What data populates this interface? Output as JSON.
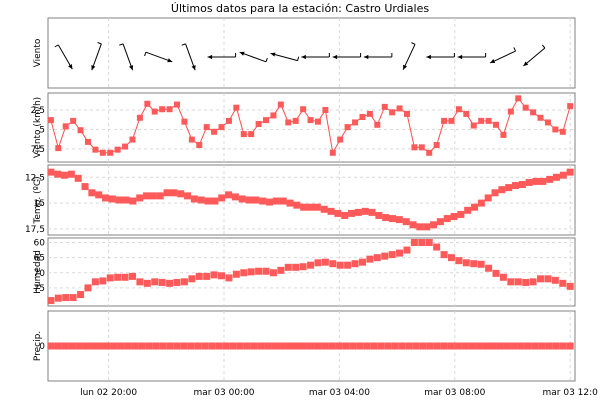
{
  "title": "Últimos datos para la estación: Castro Urdiales",
  "x_ticks": [
    "lun 02 20:00",
    "mar 03 00:00",
    "mar 03 04:00",
    "mar 03 08:00",
    "mar 03 12:0"
  ],
  "panels": [
    {
      "id": "direction",
      "ylabel": "Viento"
    },
    {
      "id": "speed",
      "ylabel": "Viento (km/h)",
      "yticks": [
        "7,5",
        "5",
        "2,5"
      ]
    },
    {
      "id": "temp",
      "ylabel": "Temp. (ºC)",
      "yticks": [
        "17,5",
        "15",
        "12,5"
      ]
    },
    {
      "id": "hum",
      "ylabel": "Humedad",
      "yticks": [
        "75",
        "70",
        "65",
        "60"
      ]
    },
    {
      "id": "precip",
      "ylabel": "Precip.",
      "yticks": [
        "0"
      ]
    }
  ],
  "colors": {
    "series": "#ff5a5a",
    "grid": "#d9d9d9",
    "frame": "#808080"
  },
  "chart_data": [
    {
      "type": "line",
      "panel": "speed",
      "ylabel": "Viento (km/h)",
      "ylim": [
        1.2,
        9.3
      ],
      "x_start": "lun 02 18:00",
      "interval_minutes": 10,
      "yticks": [
        2.5,
        5,
        7.5
      ],
      "values": [
        6.2,
        2.6,
        5.4,
        6.1,
        4.9,
        3.4,
        2.4,
        2.0,
        2.0,
        2.4,
        2.8,
        3.7,
        6.5,
        8.3,
        7.3,
        7.6,
        7.6,
        8.2,
        6.0,
        3.7,
        3.0,
        5.3,
        4.7,
        5.3,
        6.1,
        7.8,
        4.4,
        4.4,
        5.7,
        6.2,
        6.8,
        8.2,
        5.9,
        6.1,
        7.6,
        6.2,
        6.0,
        7.5,
        2.0,
        3.7,
        5.3,
        5.9,
        6.6,
        7.0,
        5.6,
        7.9,
        7.2,
        7.7,
        7.0,
        2.7,
        2.7,
        2.0,
        3.0,
        6.1,
        6.1,
        7.6,
        7.0,
        5.5,
        6.1,
        6.1,
        5.6,
        4.3,
        7.3,
        9.0,
        7.8,
        7.2,
        6.5,
        5.9,
        5.0,
        4.7,
        8.0
      ]
    },
    {
      "type": "scatter",
      "panel": "temp",
      "ylabel": "Temp. (ºC)",
      "ylim": [
        12.2,
        18.4
      ],
      "x_start": "lun 02 18:00",
      "interval_minutes": 10,
      "yticks": [
        12.5,
        15,
        17.5
      ],
      "values": [
        18.0,
        17.8,
        17.7,
        17.8,
        17.4,
        16.6,
        16.0,
        15.8,
        15.5,
        15.4,
        15.3,
        15.3,
        15.2,
        15.5,
        15.7,
        15.7,
        15.7,
        16.0,
        16.0,
        15.9,
        15.7,
        15.4,
        15.3,
        15.2,
        15.2,
        15.5,
        15.8,
        15.6,
        15.4,
        15.3,
        15.3,
        15.2,
        15.1,
        15.2,
        15.2,
        15.0,
        14.8,
        14.6,
        14.6,
        14.6,
        14.4,
        14.2,
        14.0,
        13.8,
        14.0,
        14.1,
        14.2,
        14.1,
        13.8,
        13.6,
        13.5,
        13.4,
        13.2,
        12.9,
        12.7,
        12.7,
        12.9,
        13.2,
        13.5,
        13.7,
        13.9,
        14.3,
        14.6,
        15.0,
        15.5,
        16.0,
        16.3,
        16.5,
        16.7,
        16.8,
        17.0,
        17.1,
        17.1,
        17.3,
        17.5,
        17.7,
        18.0
      ]
    },
    {
      "type": "scatter",
      "panel": "hum",
      "ylabel": "Humedad",
      "ylim": [
        55,
        75.5
      ],
      "x_start": "lun 02 18:00",
      "interval_minutes": 10,
      "yticks": [
        60,
        65,
        70,
        75
      ],
      "values": [
        55.8,
        56.6,
        56.8,
        56.8,
        57.8,
        60.0,
        62.0,
        62.3,
        63.3,
        63.5,
        63.5,
        63.8,
        62.0,
        61.5,
        62.0,
        61.8,
        61.5,
        61.8,
        62.0,
        63.0,
        63.8,
        63.8,
        64.3,
        64.0,
        63.3,
        64.5,
        65.0,
        65.3,
        65.5,
        65.5,
        65.0,
        65.8,
        66.8,
        66.8,
        67.0,
        67.5,
        68.3,
        68.5,
        68.0,
        67.5,
        67.5,
        68.0,
        68.5,
        69.5,
        70.0,
        70.5,
        71.0,
        71.5,
        72.5,
        75.0,
        75.0,
        75.0,
        73.5,
        71.0,
        70.0,
        69.0,
        68.3,
        68.0,
        67.8,
        66.5,
        64.8,
        63.5,
        62.0,
        62.0,
        61.8,
        62.0,
        63.0,
        63.0,
        62.5,
        61.5,
        60.5
      ]
    },
    {
      "type": "scatter",
      "panel": "precip",
      "ylabel": "Precip.",
      "ylim": [
        -1,
        1
      ],
      "x_start": "lun 02 18:00",
      "interval_minutes": 10,
      "yticks": [
        0
      ],
      "values": [
        0,
        0,
        0,
        0,
        0,
        0,
        0,
        0,
        0,
        0,
        0,
        0,
        0,
        0,
        0,
        0,
        0,
        0,
        0,
        0,
        0,
        0,
        0,
        0,
        0,
        0,
        0,
        0,
        0,
        0,
        0,
        0,
        0,
        0,
        0,
        0,
        0,
        0,
        0,
        0,
        0,
        0,
        0,
        0,
        0,
        0,
        0,
        0,
        0,
        0,
        0,
        0,
        0,
        0,
        0,
        0,
        0,
        0,
        0,
        0,
        0,
        0,
        0,
        0,
        0,
        0,
        0,
        0,
        0,
        0,
        0,
        0,
        0,
        0,
        0
      ]
    },
    {
      "type": "wind_direction",
      "panel": "direction",
      "ylabel": "Viento",
      "x_start": "lun 02 18:00",
      "interval_minutes": 20,
      "directions_deg": [
        150,
        200,
        160,
        110,
        160,
        270,
        290,
        285,
        270,
        270,
        270,
        205,
        270,
        270,
        245,
        230
      ]
    }
  ]
}
